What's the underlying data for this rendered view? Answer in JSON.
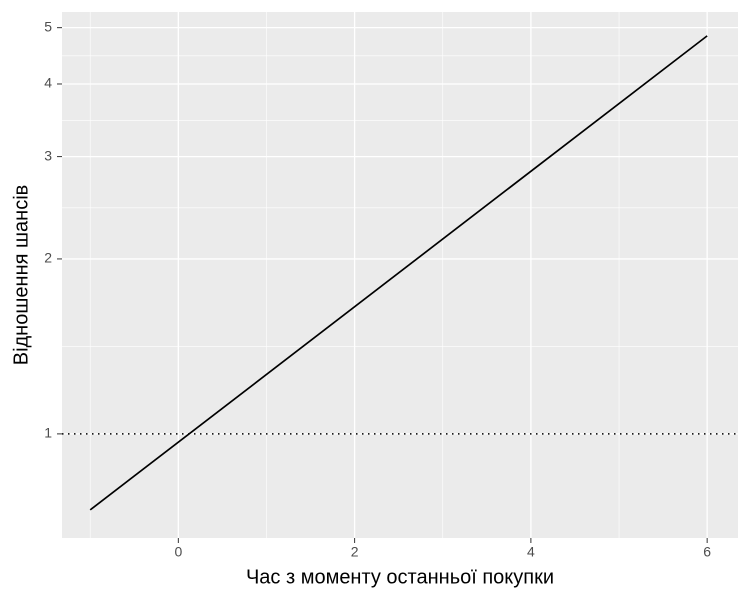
{
  "chart_data": {
    "type": "line",
    "x_label": "Час з моменту останньої покупки",
    "y_label": "Відношення шансів",
    "x": [
      -1,
      6
    ],
    "series": [
      {
        "color": "#000000",
        "values": [
          0.74,
          4.84
        ]
      }
    ],
    "xlim": [
      -1.32,
      6.35
    ],
    "xticks": [
      0,
      2,
      4,
      6
    ],
    "ylim": [
      0.662,
      5.32
    ],
    "yticks": [
      1,
      2,
      3,
      4,
      5
    ],
    "log_y": true,
    "grid": true,
    "reference_line": 1
  }
}
